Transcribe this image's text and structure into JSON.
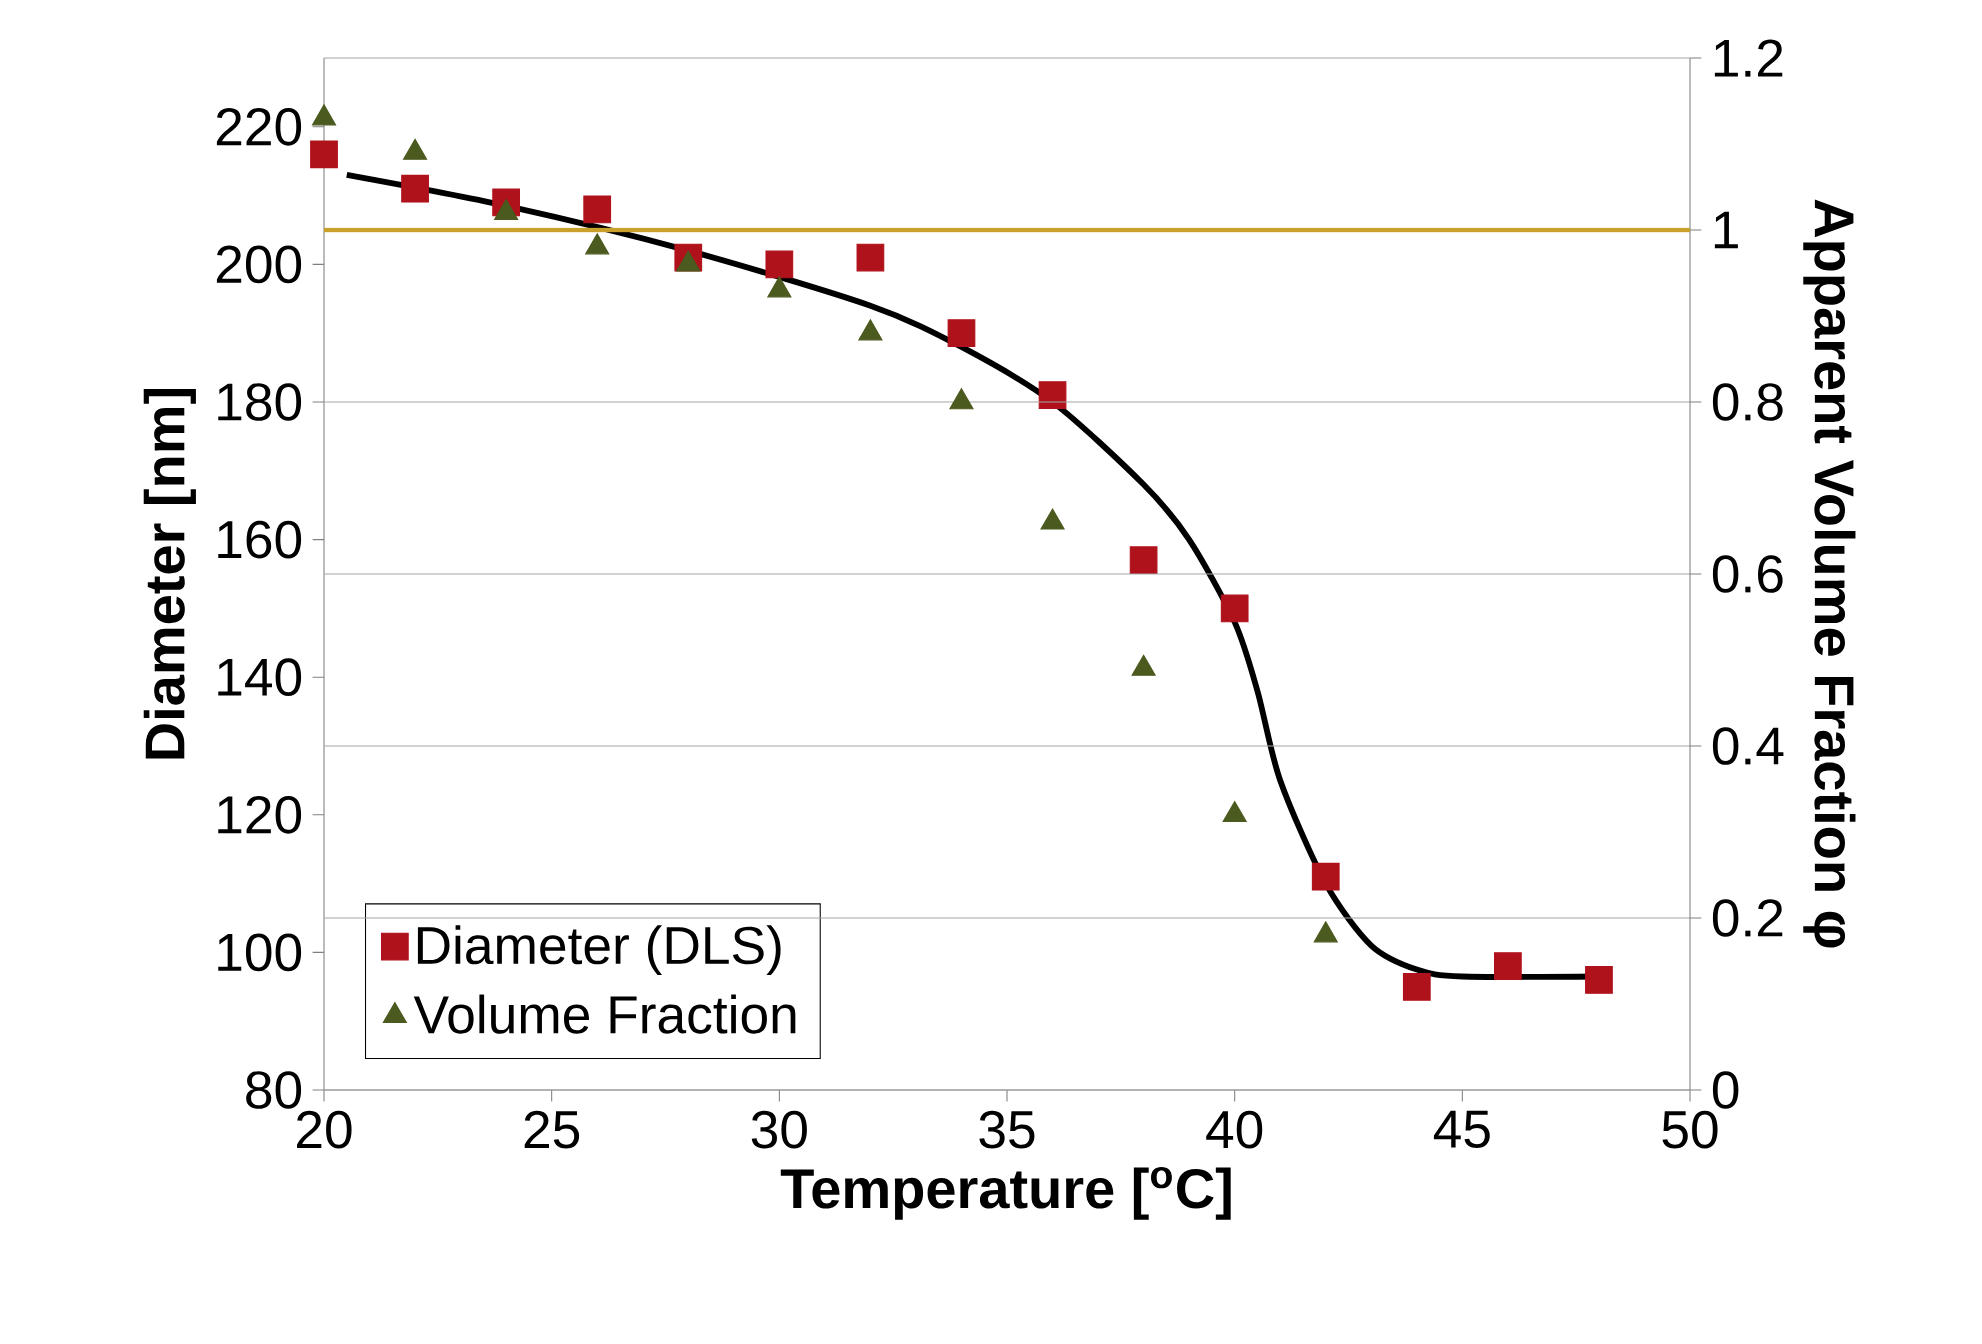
{
  "chart_data": {
    "type": "scatter",
    "xlabel": "Temperature [$^{o}$C]",
    "ylabel": "Diameter [nm]",
    "y2label": "Apparent Volume Fraction φ",
    "xlim": [
      20,
      50
    ],
    "xticks": [
      20,
      25,
      30,
      35,
      40,
      45,
      50
    ],
    "ylim": [
      80,
      230
    ],
    "yticks": [
      80,
      100,
      120,
      140,
      160,
      180,
      200,
      220
    ],
    "y2lim": [
      0,
      1.2
    ],
    "y2ticks": [
      0,
      0.2,
      0.4,
      0.6,
      0.8,
      1,
      1.2
    ],
    "grid": "y",
    "legend": "bottom left",
    "ref_lines": [
      {
        "axis": "y2",
        "value": 1,
        "color": "#c8a02a"
      }
    ],
    "series": [
      {
        "name": "Diameter (DLS)",
        "color": "#b0121b",
        "marker": "square",
        "x": [
          20,
          22,
          24,
          26,
          28,
          30,
          32,
          34,
          36,
          38,
          40,
          42,
          44,
          46,
          48
        ],
        "values": [
          216,
          211,
          209,
          208,
          201,
          200,
          201,
          190,
          181,
          157,
          150,
          111,
          95,
          98,
          96
        ]
      },
      {
        "name": "Volume Fraction",
        "color": "#4b5a1e",
        "marker": "triangle",
        "axis": "y2",
        "x": [
          20,
          22,
          24,
          26,
          28,
          30,
          32,
          34,
          36,
          38,
          40,
          42
        ],
        "values": [
          1.13,
          1.09,
          1.02,
          0.98,
          0.96,
          0.93,
          0.88,
          0.8,
          0.66,
          0.49,
          0.32,
          0.18
        ]
      },
      {
        "type": "line",
        "color": "#000000",
        "marker": "none",
        "x": [
          20.5,
          24,
          28,
          32,
          34,
          36,
          38,
          39,
          40,
          40.5,
          41,
          42,
          43,
          44,
          45,
          48
        ],
        "values": [
          213,
          208.5,
          202,
          194,
          188,
          180,
          168,
          160,
          148,
          138,
          125,
          110,
          101,
          97.5,
          96.5,
          96.5
        ]
      }
    ]
  }
}
